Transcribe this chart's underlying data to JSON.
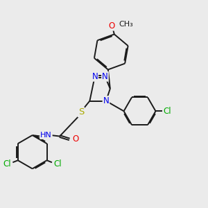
{
  "bg_color": "#ebebeb",
  "bond_color": "#1a1a1a",
  "N_color": "#0000ee",
  "O_color": "#ee0000",
  "S_color": "#aaaa00",
  "Cl_color": "#00aa00",
  "C_color": "#1a1a1a",
  "line_width": 1.4,
  "font_size": 8.5,
  "xlim": [
    0,
    10
  ],
  "ylim": [
    0,
    10
  ]
}
